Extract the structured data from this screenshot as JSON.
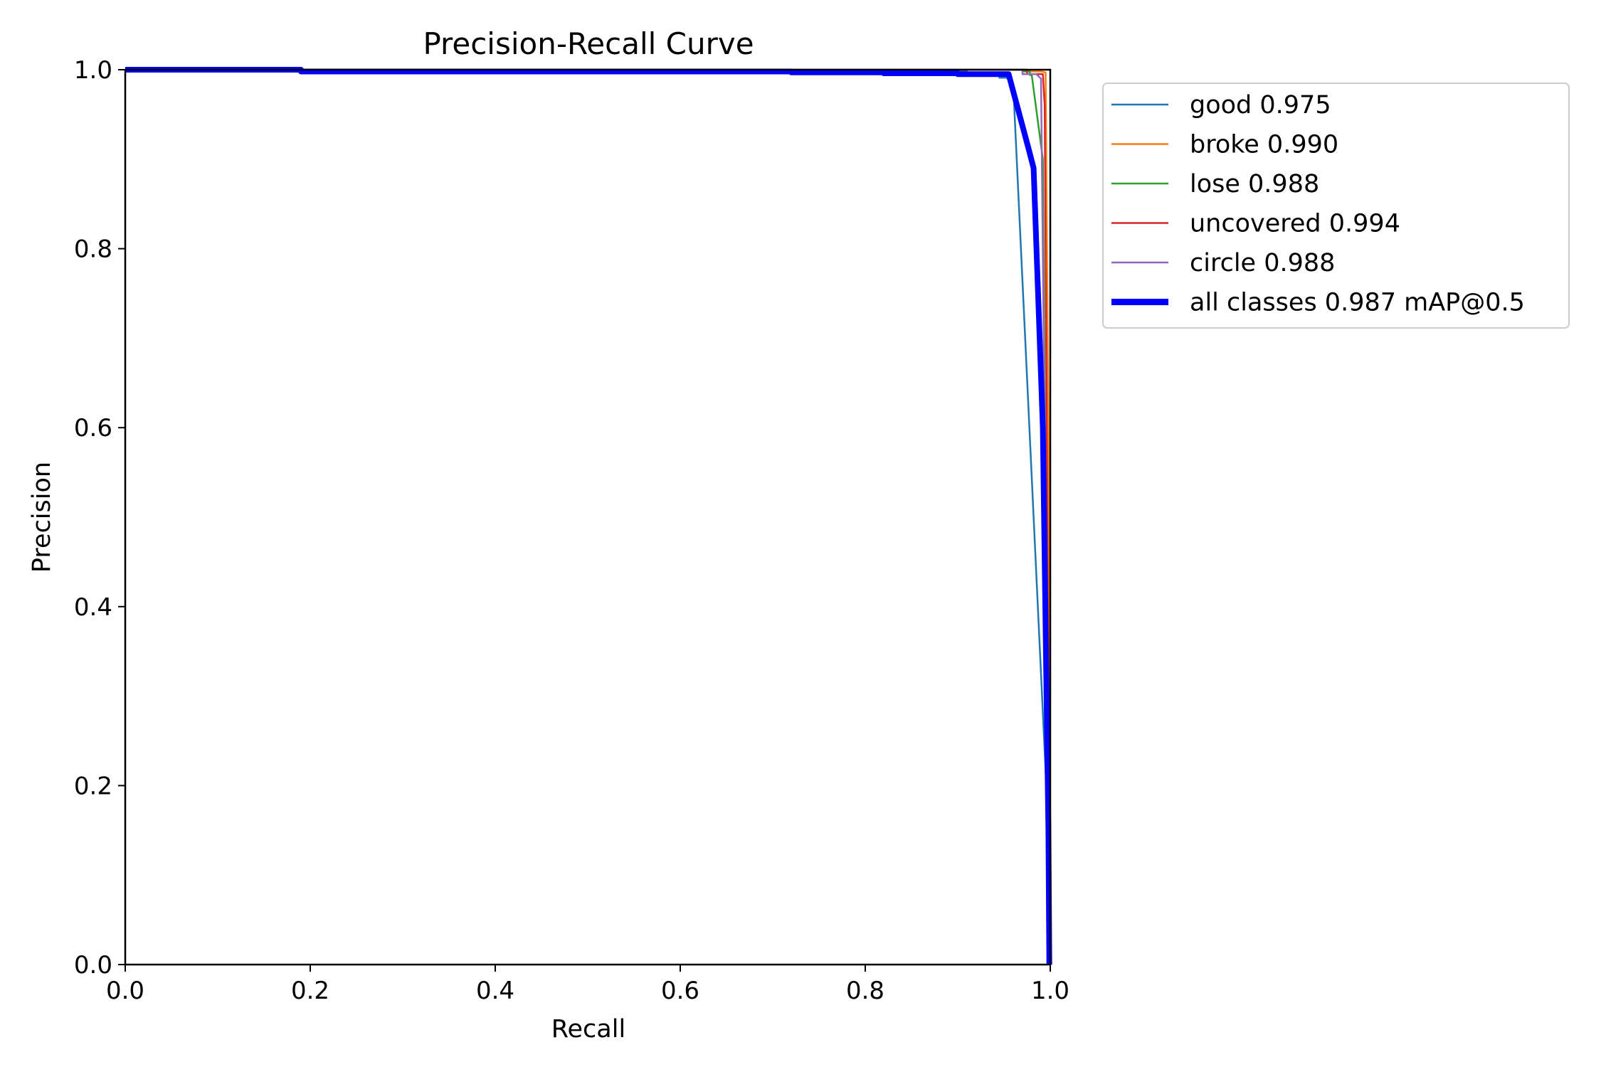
{
  "chart_data": {
    "type": "line",
    "title": "Precision-Recall Curve",
    "xlabel": "Recall",
    "ylabel": "Precision",
    "xlim": [
      0.0,
      1.0
    ],
    "ylim": [
      0.0,
      1.0
    ],
    "xticks": [
      "0.0",
      "0.2",
      "0.4",
      "0.6",
      "0.8",
      "1.0"
    ],
    "yticks": [
      "0.0",
      "0.2",
      "0.4",
      "0.6",
      "0.8",
      "1.0"
    ],
    "grid": false,
    "legend_position": "outside upper right",
    "series": [
      {
        "name": "good 0.975",
        "color": "#1f77b4",
        "x": [
          0.0,
          0.19,
          0.19,
          0.91,
          0.91,
          0.945,
          0.945,
          0.953,
          0.96,
          0.998,
          0.999
        ],
        "y": [
          1.0,
          1.0,
          0.998,
          0.998,
          0.994,
          0.994,
          0.991,
          0.991,
          0.982,
          0.15,
          0.0
        ]
      },
      {
        "name": "broke 0.990",
        "color": "#ff7f0e",
        "x": [
          0.0,
          0.96,
          0.975,
          0.975,
          0.99,
          0.995,
          0.998,
          0.999
        ],
        "y": [
          1.0,
          1.0,
          1.0,
          0.998,
          0.998,
          0.997,
          0.6,
          0.0
        ]
      },
      {
        "name": "lose 0.988",
        "color": "#2ca02c",
        "x": [
          0.0,
          0.96,
          0.97,
          0.97,
          0.978,
          0.978,
          0.98,
          0.992,
          0.998,
          0.999
        ],
        "y": [
          1.0,
          1.0,
          1.0,
          0.998,
          0.998,
          0.994,
          0.994,
          0.9,
          0.1,
          0.0
        ]
      },
      {
        "name": "uncovered 0.994",
        "color": "#d62728",
        "x": [
          0.0,
          0.96,
          0.975,
          0.975,
          0.992,
          0.994,
          0.998,
          0.999
        ],
        "y": [
          1.0,
          1.0,
          1.0,
          0.995,
          0.995,
          0.96,
          0.3,
          0.0
        ]
      },
      {
        "name": "circle 0.988",
        "color": "#9467bd",
        "x": [
          0.0,
          0.96,
          0.97,
          0.97,
          0.985,
          0.99,
          0.998,
          0.999
        ],
        "y": [
          1.0,
          1.0,
          1.0,
          0.995,
          0.995,
          0.99,
          0.2,
          0.0
        ]
      },
      {
        "name": "all classes 0.987 mAP@0.5",
        "color": "#0000ff",
        "x": [
          0.0,
          0.19,
          0.19,
          0.72,
          0.72,
          0.82,
          0.82,
          0.9,
          0.9,
          0.955,
          0.977,
          0.982,
          0.992,
          0.998,
          0.999
        ],
        "y": [
          1.0,
          1.0,
          0.998,
          0.998,
          0.997,
          0.997,
          0.996,
          0.996,
          0.995,
          0.995,
          0.91,
          0.89,
          0.6,
          0.15,
          0.0
        ]
      }
    ]
  }
}
